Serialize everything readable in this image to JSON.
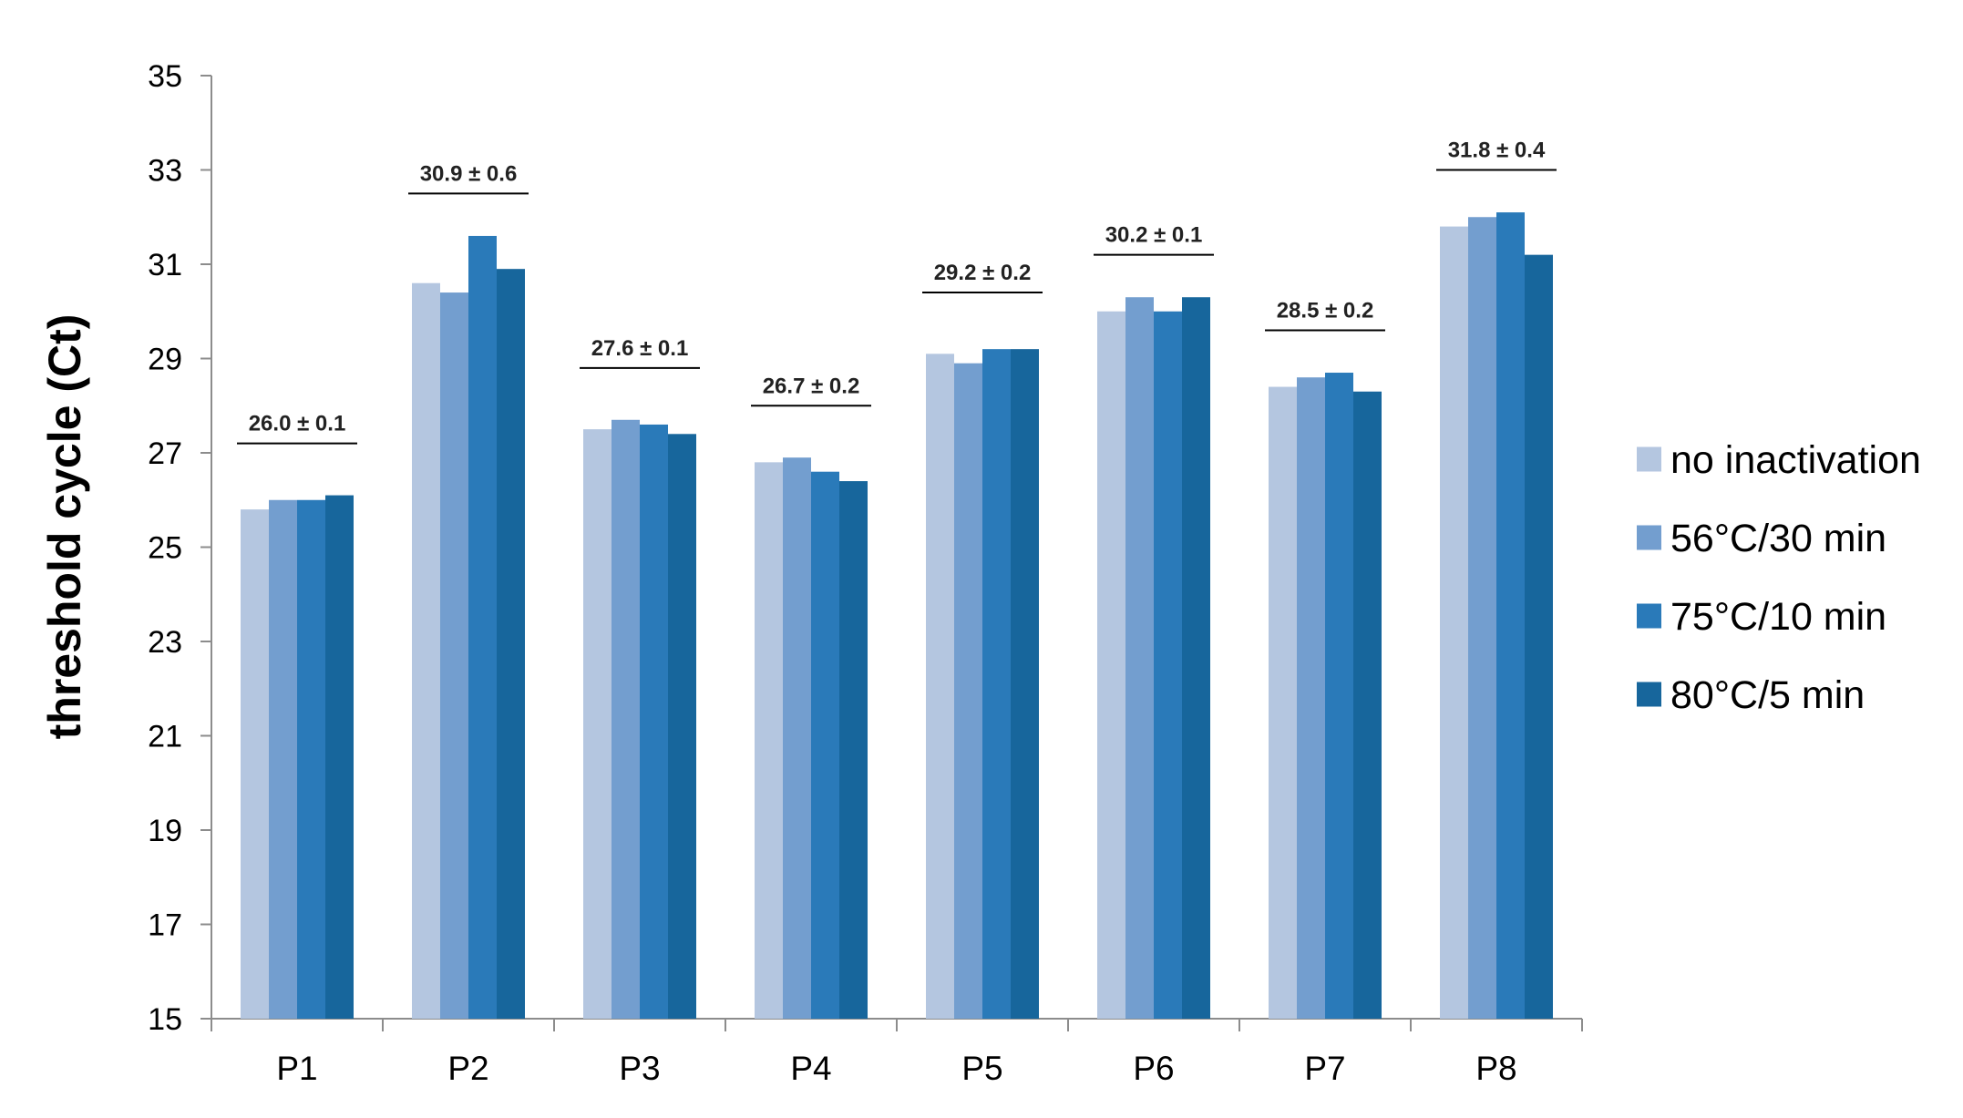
{
  "chart_data": {
    "type": "bar",
    "title": "",
    "xlabel": "",
    "ylabel": "threshold cycle (Ct)",
    "ylim": [
      15,
      35
    ],
    "yticks": [
      15,
      17,
      19,
      21,
      23,
      25,
      27,
      29,
      31,
      33,
      35
    ],
    "grid": false,
    "legend_position": "right",
    "categories": [
      "P1",
      "P2",
      "P3",
      "P4",
      "P5",
      "P6",
      "P7",
      "P8"
    ],
    "series": [
      {
        "name": "no inactivation",
        "color": "#b4c6e0",
        "values": [
          25.8,
          30.6,
          27.5,
          26.8,
          29.1,
          30.0,
          28.4,
          31.8
        ]
      },
      {
        "name": "56°C/30 min",
        "color": "#739ecf",
        "values": [
          26.0,
          30.4,
          27.7,
          26.9,
          28.9,
          30.3,
          28.6,
          32.0
        ]
      },
      {
        "name": "75°C/10 min",
        "color": "#2a7ab9",
        "values": [
          26.0,
          31.6,
          27.6,
          26.6,
          29.2,
          30.0,
          28.7,
          32.1
        ]
      },
      {
        "name": "80°C/5 min",
        "color": "#17669c",
        "values": [
          26.1,
          30.9,
          27.4,
          26.4,
          29.2,
          30.3,
          28.3,
          31.2
        ]
      }
    ],
    "annotations": [
      "26.0 ± 0.1",
      "30.9 ± 0.6",
      "27.6 ± 0.1",
      "26.7 ± 0.2",
      "29.2 ± 0.2",
      "30.2 ± 0.1",
      "28.5 ± 0.2",
      "31.8 ± 0.4"
    ],
    "annotation_y": [
      27.2,
      32.5,
      28.8,
      28.0,
      30.4,
      31.2,
      29.6,
      33.0
    ]
  }
}
